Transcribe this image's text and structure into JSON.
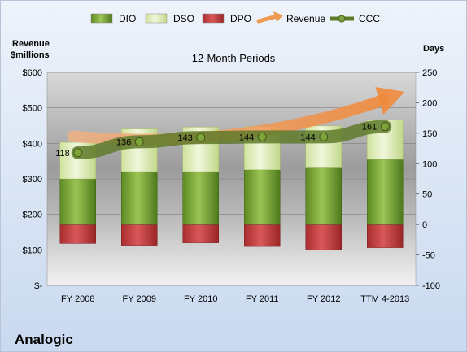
{
  "chart_data": {
    "type": "bar",
    "subtitle": "12-Month Periods",
    "company": "Analogic",
    "left_axis": {
      "title_line1": "Revenue",
      "title_line2": "$millions",
      "range": [
        0,
        600
      ],
      "ticks": [
        0,
        100,
        200,
        300,
        400,
        500,
        600
      ],
      "tick_labels": [
        "$-",
        "$100",
        "$200",
        "$300",
        "$400",
        "$500",
        "$600"
      ]
    },
    "right_axis": {
      "title": "Days",
      "range": [
        -100,
        250
      ],
      "ticks": [
        -100,
        -50,
        0,
        50,
        100,
        150,
        200,
        250
      ],
      "tick_labels": [
        "-100",
        "-50",
        "0",
        "50",
        "100",
        "150",
        "200",
        "250"
      ]
    },
    "categories": [
      "FY 2008",
      "FY 2009",
      "FY 2010",
      "FY 2011",
      "FY 2012",
      "TTM 4-2013"
    ],
    "legend": [
      {
        "key": "dio",
        "label": "DIO",
        "color": "#6e9a2e"
      },
      {
        "key": "dso",
        "label": "DSO",
        "color": "#dceab3"
      },
      {
        "key": "dpo",
        "label": "DPO",
        "color": "#c0393a"
      },
      {
        "key": "revenue",
        "label": "Revenue",
        "color": "#ee9a52"
      },
      {
        "key": "ccc",
        "label": "CCC",
        "color": "#5e7a2a"
      }
    ],
    "series": [
      {
        "key": "dio",
        "name": "DIO",
        "values": [
          75,
          87,
          87,
          90,
          93,
          107
        ]
      },
      {
        "key": "dso",
        "name": "DSO",
        "values": [
          60,
          70,
          73,
          71,
          69,
          65
        ]
      },
      {
        "key": "dpo",
        "name": "DPO",
        "values": [
          -31,
          -34,
          -30,
          -36,
          -42,
          -38
        ]
      },
      {
        "key": "ccc",
        "name": "CCC",
        "values": [
          118,
          136,
          143,
          144,
          144,
          161
        ]
      }
    ],
    "ccc_labels": [
      "118",
      "136",
      "143",
      "144",
      "144",
      "161"
    ],
    "revenue_trend": {
      "from": 420,
      "to": 545
    },
    "grid": true
  }
}
